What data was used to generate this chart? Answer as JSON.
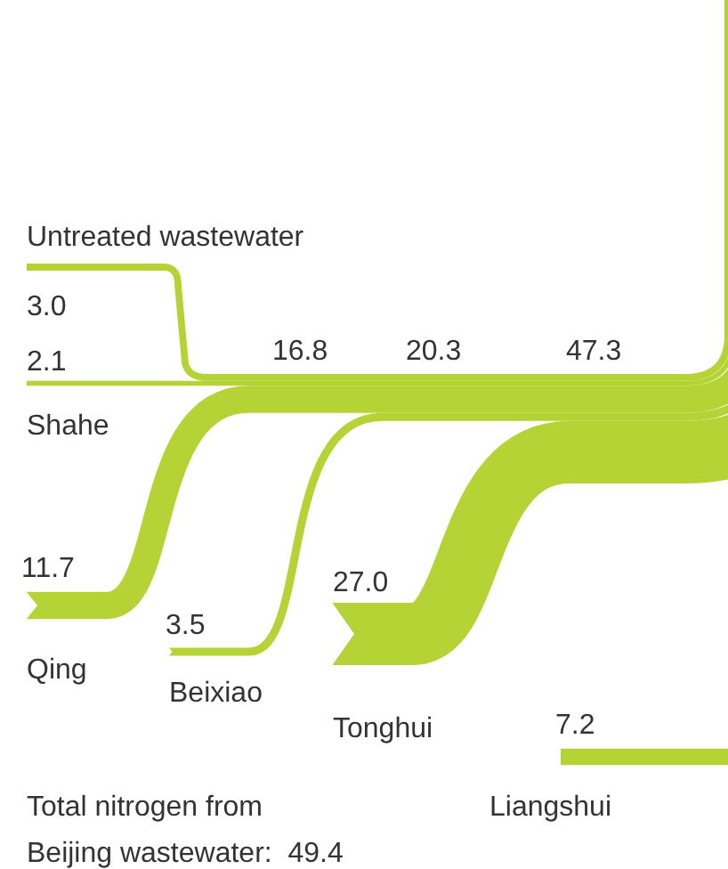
{
  "chart_data": {
    "type": "other",
    "color": "#b5d334",
    "categories": [
      "Untreated wastewater",
      "Shahe",
      "Qing",
      "Beixiao",
      "Tonghui",
      "Liangshui"
    ],
    "values": [
      3.0,
      2.1,
      11.7,
      3.5,
      27.0,
      7.2
    ],
    "value_labels": [
      "3.0",
      "2.1",
      "11.7",
      "3.5",
      "27.0",
      "7.2"
    ],
    "totals": [
      "16.8",
      "20.3",
      "47.3"
    ],
    "annotations": [
      "Total nitrogen from\nBeijing wastewater:  49.4"
    ]
  }
}
